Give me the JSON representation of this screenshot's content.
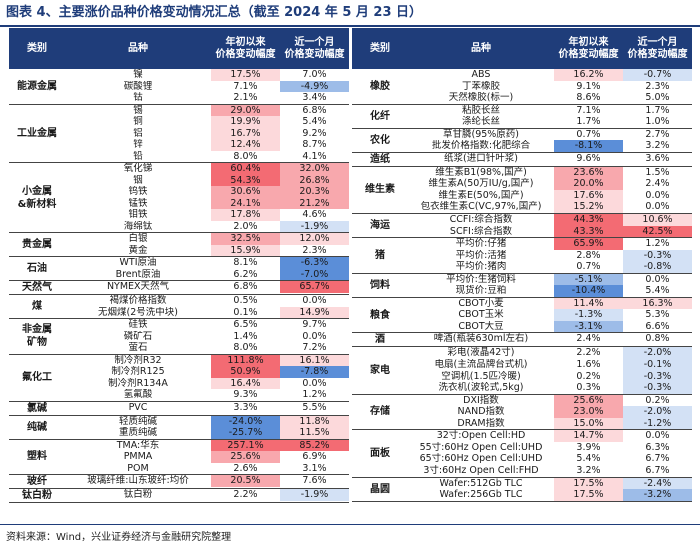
{
  "title": "图表 4、主要涨价品种价格变动情况汇总（截至 2024 年 5 月 23 日）",
  "footnote": "资料来源：Wind，兴业证券经济与金融研究院整理",
  "headers": {
    "category": "类别",
    "item": "品种",
    "ytd": "年初以来\n价格变动幅度",
    "month": "近一个月\n价格变动幅度"
  },
  "colors": {
    "header": "#1f3d7a",
    "red_strong": "#f36b73",
    "red_mid": "#f8a8ad",
    "red_light": "#fcd9db",
    "blue_strong": "#5b8ed8",
    "blue_mid": "#9dbce8",
    "blue_light": "#d3e1f5"
  },
  "left": [
    {
      "category": "能源金属",
      "rows": [
        [
          "镍",
          "17.5%",
          "7.0%"
        ],
        [
          "碳酸锂",
          "7.1%",
          "-4.9%"
        ],
        [
          "钴",
          "2.1%",
          "3.4%"
        ]
      ]
    },
    {
      "category": "工业金属",
      "rows": [
        [
          "锡",
          "29.0%",
          "6.8%"
        ],
        [
          "铜",
          "19.9%",
          "5.4%"
        ],
        [
          "铝",
          "16.7%",
          "9.2%"
        ],
        [
          "锌",
          "12.4%",
          "8.7%"
        ],
        [
          "铅",
          "8.0%",
          "4.1%"
        ]
      ]
    },
    {
      "category": "小金属\n&新材料",
      "rows": [
        [
          "氧化锑",
          "60.4%",
          "32.0%"
        ],
        [
          "铟",
          "54.3%",
          "26.8%"
        ],
        [
          "钨铁",
          "30.6%",
          "20.3%"
        ],
        [
          "锰铁",
          "24.1%",
          "21.2%"
        ],
        [
          "钼铁",
          "17.8%",
          "4.6%"
        ],
        [
          "海绵钛",
          "2.0%",
          "-1.9%"
        ]
      ]
    },
    {
      "category": "贵金属",
      "rows": [
        [
          "白银",
          "32.5%",
          "12.0%"
        ],
        [
          "黄金",
          "15.9%",
          "2.3%"
        ]
      ]
    },
    {
      "category": "石油",
      "rows": [
        [
          "WTI原油",
          "8.1%",
          "-6.3%"
        ],
        [
          "Brent原油",
          "6.2%",
          "-7.0%"
        ]
      ]
    },
    {
      "category": "天然气",
      "rows": [
        [
          "NYMEX天然气",
          "6.8%",
          "65.7%"
        ]
      ]
    },
    {
      "category": "煤",
      "rows": [
        [
          "褐煤价格指数",
          "0.5%",
          "0.0%"
        ],
        [
          "无烟煤(2号洗中块)",
          "0.1%",
          "14.9%"
        ]
      ]
    },
    {
      "category": "非金属\n矿物",
      "rows": [
        [
          "硅铁",
          "6.5%",
          "9.7%"
        ],
        [
          "磷矿石",
          "1.4%",
          "0.0%"
        ],
        [
          "萤石",
          "8.0%",
          "7.2%"
        ]
      ]
    },
    {
      "category": "氟化工",
      "rows": [
        [
          "制冷剂R32",
          "111.8%",
          "16.1%"
        ],
        [
          "制冷剂R125",
          "50.9%",
          "-7.8%"
        ],
        [
          "制冷剂R134A",
          "16.4%",
          "0.0%"
        ],
        [
          "氢氟酸",
          "9.3%",
          "1.2%"
        ]
      ]
    },
    {
      "category": "氯碱",
      "rows": [
        [
          "PVC",
          "3.3%",
          "5.5%"
        ]
      ]
    },
    {
      "category": "纯碱",
      "rows": [
        [
          "轻质纯碱",
          "-24.0%",
          "11.8%"
        ],
        [
          "重质纯碱",
          "-25.7%",
          "11.5%"
        ]
      ]
    },
    {
      "category": "塑料",
      "rows": [
        [
          "TMA:华东",
          "257.1%",
          "85.2%"
        ],
        [
          "PMMA",
          "25.6%",
          "6.9%"
        ],
        [
          "POM",
          "2.6%",
          "3.1%"
        ]
      ]
    },
    {
      "category": "玻纤",
      "rows": [
        [
          "玻璃纤维:山东玻纤:均价",
          "20.5%",
          "7.6%"
        ]
      ]
    },
    {
      "category": "钛白粉",
      "rows": [
        [
          "钛白粉",
          "2.2%",
          "-1.9%"
        ]
      ]
    }
  ],
  "right": [
    {
      "category": "橡胶",
      "rows": [
        [
          "ABS",
          "16.2%",
          "-0.7%"
        ],
        [
          "丁苯橡胶",
          "9.1%",
          "2.3%"
        ],
        [
          "天然橡胶(标一)",
          "8.6%",
          "5.0%"
        ]
      ]
    },
    {
      "category": "化纤",
      "rows": [
        [
          "粘胶长丝",
          "7.1%",
          "1.7%"
        ],
        [
          "涤纶长丝",
          "1.7%",
          "1.0%"
        ]
      ]
    },
    {
      "category": "农化",
      "rows": [
        [
          "草甘膦(95%原药)",
          "0.7%",
          "2.7%"
        ],
        [
          "批发价格指数:化肥综合",
          "-8.1%",
          "3.2%"
        ]
      ]
    },
    {
      "category": "造纸",
      "rows": [
        [
          "纸浆(进口针叶浆)",
          "9.6%",
          "3.6%"
        ]
      ]
    },
    {
      "category": "维生素",
      "rows": [
        [
          "维生素B1(98%,国产)",
          "23.6%",
          "1.5%"
        ],
        [
          "维生素A(50万IU/g,国产)",
          "20.0%",
          "2.4%"
        ],
        [
          "维生素E(50%,国产)",
          "17.6%",
          "0.0%"
        ],
        [
          "包衣维生素C(VC,97%,国产)",
          "15.2%",
          "0.0%"
        ]
      ]
    },
    {
      "category": "海运",
      "rows": [
        [
          "CCFI:综合指数",
          "44.3%",
          "10.6%"
        ],
        [
          "SCFI:综合指数",
          "43.3%",
          "42.5%"
        ]
      ]
    },
    {
      "category": "猪",
      "rows": [
        [
          "平均价:仔猪",
          "65.9%",
          "1.2%"
        ],
        [
          "平均价:活猪",
          "2.8%",
          "-0.3%"
        ],
        [
          "平均价:猪肉",
          "0.7%",
          "-0.8%"
        ]
      ]
    },
    {
      "category": "饲料",
      "rows": [
        [
          "平均价:生猪饲料",
          "-5.1%",
          "0.0%"
        ],
        [
          "现货价:豆粕",
          "-10.4%",
          "5.4%"
        ]
      ]
    },
    {
      "category": "粮食",
      "rows": [
        [
          "CBOT小麦",
          "11.4%",
          "16.3%"
        ],
        [
          "CBOT玉米",
          "-1.3%",
          "5.3%"
        ],
        [
          "CBOT大豆",
          "-3.1%",
          "6.6%"
        ]
      ]
    },
    {
      "category": "酒",
      "rows": [
        [
          "啤酒(瓶装630ml左右)",
          "2.4%",
          "0.8%"
        ]
      ]
    },
    {
      "category": "家电",
      "rows": [
        [
          "彩电(液晶42寸)",
          "2.2%",
          "-2.0%"
        ],
        [
          "电扇(主流品牌台式机)",
          "1.6%",
          "-0.1%"
        ],
        [
          "空调机(1.5匹冷暖)",
          "0.2%",
          "-0.3%"
        ],
        [
          "洗衣机(波轮式,5kg)",
          "0.3%",
          "-0.3%"
        ]
      ]
    },
    {
      "category": "存储",
      "rows": [
        [
          "DXI指数",
          "25.6%",
          "0.2%"
        ],
        [
          "NAND指数",
          "23.0%",
          "-2.0%"
        ],
        [
          "DRAM指数",
          "15.0%",
          "-1.2%"
        ]
      ]
    },
    {
      "category": "面板",
      "rows": [
        [
          "32寸:Open Cell:HD",
          "14.7%",
          "0.0%"
        ],
        [
          "55寸:60Hz Open Cell:UHD",
          "3.9%",
          "6.3%"
        ],
        [
          "65寸:60Hz Open Cell:UHD",
          "5.4%",
          "6.7%"
        ],
        [
          "3寸:60Hz Open Cell:FHD",
          "3.2%",
          "6.7%"
        ]
      ]
    },
    {
      "category": "晶圆",
      "rows": [
        [
          "Wafer:512Gb TLC",
          "17.5%",
          "-2.4%"
        ],
        [
          "Wafer:256Gb TLC",
          "17.5%",
          "-3.2%"
        ]
      ]
    }
  ]
}
